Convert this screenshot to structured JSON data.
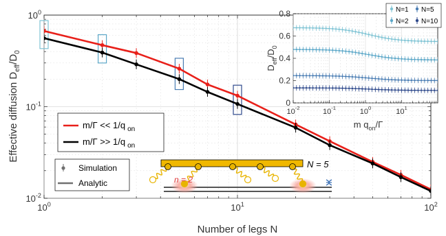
{
  "chart_data": [
    {
      "type": "line",
      "xscale": "log",
      "yscale": "log",
      "xlim": [
        1,
        100
      ],
      "ylim": [
        0.01,
        1
      ],
      "xlabel": "Number of legs N",
      "ylabel": "Effective diffusion D",
      "ylabel_sub1": "eff",
      "ylabel_mid": "/D",
      "ylabel_sub2": "0",
      "x_ticks": [
        1,
        10,
        100
      ],
      "x_tick_labels": [
        {
          "base": "10",
          "exp": "0"
        },
        {
          "base": "10",
          "exp": "1"
        },
        {
          "base": "10",
          "exp": "2"
        }
      ],
      "y_ticks": [
        0.01,
        0.1,
        1
      ],
      "y_tick_labels": [
        {
          "base": "10",
          "exp": "-2"
        },
        {
          "base": "10",
          "exp": "-1"
        },
        {
          "base": "10",
          "exp": "0"
        }
      ],
      "grid": true,
      "legend_position": "left",
      "series": [
        {
          "name": "m/Γ << 1/q",
          "name_sub": "on",
          "color": "#e8201a",
          "x": [
            1,
            2,
            3,
            5,
            7,
            10,
            20,
            30,
            50,
            70,
            100
          ],
          "y": [
            0.67,
            0.47,
            0.385,
            0.26,
            0.175,
            0.132,
            0.064,
            0.042,
            0.025,
            0.018,
            0.0125
          ]
        },
        {
          "name": "m/Γ >> 1/q",
          "name_sub": "on",
          "color": "#000000",
          "x": [
            1,
            2,
            3,
            5,
            7,
            10,
            20,
            30,
            50,
            70,
            100
          ],
          "y": [
            0.56,
            0.39,
            0.29,
            0.2,
            0.145,
            0.107,
            0.059,
            0.038,
            0.024,
            0.017,
            0.012
          ]
        }
      ],
      "boxes": [
        {
          "x": 1,
          "color": "#7ec3d4"
        },
        {
          "x": 2,
          "color": "#5ba7c8"
        },
        {
          "x": 5,
          "color": "#4a7db3"
        },
        {
          "x": 10,
          "color": "#2f4a8c"
        }
      ],
      "legend2": [
        {
          "label": "Simulation",
          "color": "#707070"
        },
        {
          "label": "Analytic",
          "color": "#707070"
        }
      ]
    },
    {
      "type": "line",
      "xscale": "log",
      "xlim": [
        0.01,
        100
      ],
      "ylim": [
        0,
        0.8
      ],
      "xlabel": "m q",
      "xlabel_sub": "on",
      "xlabel_tail": "/Γ",
      "ylabel": "D",
      "ylabel_sub": "eff",
      "ylabel_tail": "/D",
      "ylabel_sub2": "0",
      "x_ticks": [
        0.01,
        0.1,
        1,
        10
      ],
      "x_tick_labels": [
        {
          "base": "10",
          "exp": "-2"
        },
        {
          "base": "10",
          "exp": "-1"
        },
        {
          "base": "10",
          "exp": "0"
        },
        {
          "base": "10",
          "exp": "1"
        }
      ],
      "y_ticks": [
        0,
        0.2,
        0.4,
        0.6,
        0.8
      ],
      "y_tick_labels": [
        "0",
        "0.2",
        "0.4",
        "0.6",
        "0.8"
      ],
      "grid": true,
      "legend_position": "top-right",
      "series": [
        {
          "name": "N=1",
          "color": "#7ec3d4",
          "plateau_low": 0.675,
          "plateau_high": 0.55
        },
        {
          "name": "N=2",
          "color": "#5ba7c8",
          "plateau_low": 0.48,
          "plateau_high": 0.385
        },
        {
          "name": "N=5",
          "color": "#4a7db3",
          "plateau_low": 0.245,
          "plateau_high": 0.2
        },
        {
          "name": "N=10",
          "color": "#2f4a8c",
          "plateau_low": 0.135,
          "plateau_high": 0.112
        }
      ]
    }
  ],
  "cartoon": {
    "label_N": "N = 5",
    "label_n": "n = 2",
    "beam_color": "#f0b800",
    "spring_color": "#e8b400",
    "glow_color": "#f2a0a0"
  }
}
